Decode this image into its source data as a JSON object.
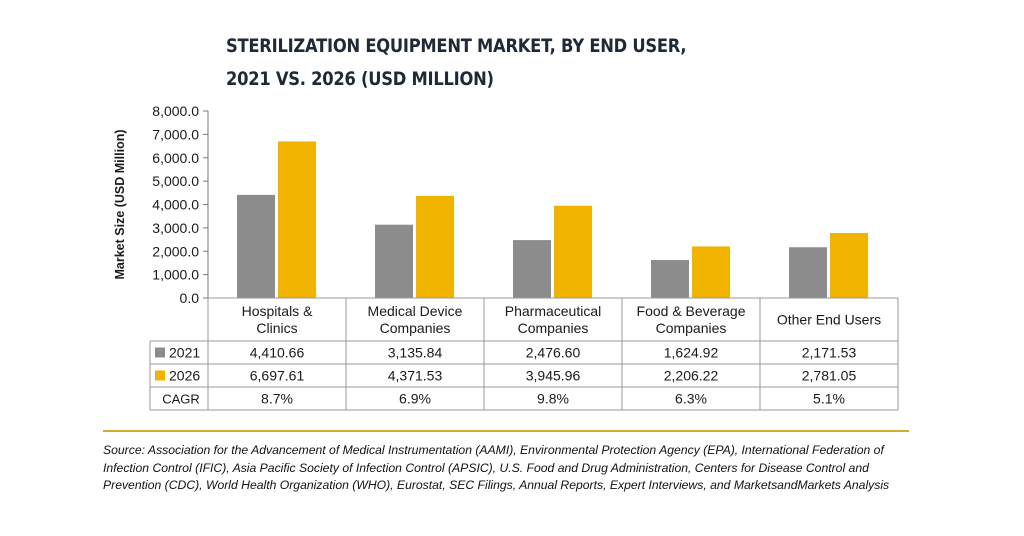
{
  "title_line1": "STERILIZATION EQUIPMENT MARKET, BY END USER,",
  "title_line2": "2021 VS. 2026 (USD MILLION)",
  "chart_data": {
    "type": "bar",
    "categories": [
      [
        "Hospitals &",
        "Clinics"
      ],
      [
        "Medical Device",
        "Companies"
      ],
      [
        "Pharmaceutical",
        "Companies"
      ],
      [
        "Food & Beverage",
        "Companies"
      ],
      [
        "Other End Users"
      ]
    ],
    "series": [
      {
        "name": "2021",
        "color": "#8c8c8c",
        "values": [
          4410.66,
          3135.84,
          2476.6,
          1624.92,
          2171.53
        ],
        "labels": [
          "4,410.66",
          "3,135.84",
          "2,476.60",
          "1,624.92",
          "2,171.53"
        ]
      },
      {
        "name": "2026",
        "color": "#f0b400",
        "values": [
          6697.61,
          4371.53,
          3945.96,
          2206.22,
          2781.05
        ],
        "labels": [
          "6,697.61",
          "4,371.53",
          "3,945.96",
          "2,206.22",
          "2,781.05"
        ]
      }
    ],
    "cagr_label": "CAGR",
    "cagr": [
      "8.7%",
      "6.9%",
      "9.8%",
      "6.3%",
      "5.1%"
    ],
    "ylabel": "Market Size (USD Million)",
    "ylim": [
      0,
      8000
    ],
    "yticks": [
      0,
      1000,
      2000,
      3000,
      4000,
      5000,
      6000,
      7000,
      8000
    ],
    "ytick_labels": [
      "0.0",
      "1,000.0",
      "2,000.0",
      "3,000.0",
      "4,000.0",
      "5,000.0",
      "6,000.0",
      "7,000.0",
      "8,000.0"
    ],
    "grid": false,
    "legend": "data-table"
  },
  "source": "Source: Association for the Advancement of Medical Instrumentation (AAMI), Environmental Protection Agency (EPA), International Federation of Infection Control (IFIC), Asia Pacific Society of Infection Control (APSIC), U.S. Food and Drug Administration, Centers for Disease Control and Prevention (CDC), World Health Organization (WHO), Eurostat, SEC Filings, Annual Reports, Expert Interviews, and MarketsandMarkets Analysis"
}
